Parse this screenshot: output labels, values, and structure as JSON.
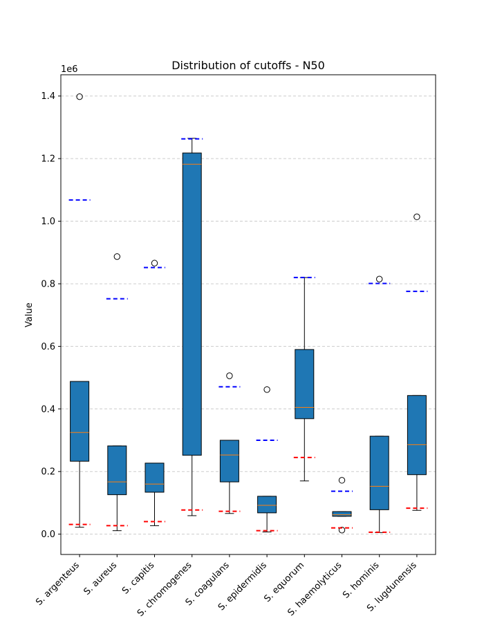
{
  "chart_data": {
    "type": "box",
    "title": "Distribution of cutoffs - N50",
    "xlabel": "",
    "ylabel": "Value",
    "y_scale_label": "1e6",
    "ylim": [
      -0.065,
      1.468
    ],
    "yticks": [
      0.0,
      0.2,
      0.4,
      0.6,
      0.8,
      1.0,
      1.2,
      1.4
    ],
    "ytick_labels": [
      "0.0",
      "0.2",
      "0.4",
      "0.6",
      "0.8",
      "1.0",
      "1.2",
      "1.4"
    ],
    "grid": "y-dashed",
    "categories": [
      "S. argenteus",
      "S. aureus",
      "S. capitis",
      "S. chromogenes",
      "S. coagulans",
      "S. epidermidis",
      "S. equorum",
      "S. haemolyticus",
      "S. hominis",
      "S. lugdunensis"
    ],
    "boxes": [
      {
        "whisker_low": 0.022,
        "q1": 0.233,
        "median": 0.325,
        "q3": 0.488,
        "whisker_high": 0.488,
        "outliers": [
          1.398
        ],
        "upper_cutoff": 1.068,
        "lower_cutoff": 0.031
      },
      {
        "whisker_low": 0.011,
        "q1": 0.126,
        "median": 0.167,
        "q3": 0.282,
        "whisker_high": 0.282,
        "outliers": [
          0.887
        ],
        "upper_cutoff": 0.752,
        "lower_cutoff": 0.027
      },
      {
        "whisker_low": 0.027,
        "q1": 0.134,
        "median": 0.16,
        "q3": 0.227,
        "whisker_high": 0.227,
        "outliers": [
          0.866
        ],
        "upper_cutoff": 0.852,
        "lower_cutoff": 0.04
      },
      {
        "whisker_low": 0.059,
        "q1": 0.252,
        "median": 1.182,
        "q3": 1.218,
        "whisker_high": 1.265,
        "outliers": [],
        "upper_cutoff": 1.263,
        "lower_cutoff": 0.077
      },
      {
        "whisker_low": 0.066,
        "q1": 0.167,
        "median": 0.253,
        "q3": 0.3,
        "whisker_high": 0.3,
        "outliers": [
          0.506
        ],
        "upper_cutoff": 0.471,
        "lower_cutoff": 0.073
      },
      {
        "whisker_low": 0.007,
        "q1": 0.068,
        "median": 0.092,
        "q3": 0.121,
        "whisker_high": 0.121,
        "outliers": [
          0.462
        ],
        "upper_cutoff": 0.3,
        "lower_cutoff": 0.011
      },
      {
        "whisker_low": 0.17,
        "q1": 0.369,
        "median": 0.405,
        "q3": 0.59,
        "whisker_high": 0.82,
        "outliers": [],
        "upper_cutoff": 0.82,
        "lower_cutoff": 0.245
      },
      {
        "whisker_low": 0.057,
        "q1": 0.057,
        "median": 0.062,
        "q3": 0.072,
        "whisker_high": 0.072,
        "outliers": [
          0.172,
          0.013
        ],
        "upper_cutoff": 0.137,
        "lower_cutoff": 0.02
      },
      {
        "whisker_low": 0.005,
        "q1": 0.078,
        "median": 0.153,
        "q3": 0.313,
        "whisker_high": 0.313,
        "outliers": [
          0.815
        ],
        "upper_cutoff": 0.801,
        "lower_cutoff": 0.006
      },
      {
        "whisker_low": 0.076,
        "q1": 0.19,
        "median": 0.286,
        "q3": 0.443,
        "whisker_high": 0.443,
        "outliers": [
          1.014
        ],
        "upper_cutoff": 0.776,
        "lower_cutoff": 0.083
      }
    ],
    "colors": {
      "box_fill": "#1f77b4",
      "median": "#ff7f0e",
      "upper_cutoff": "#0000ff",
      "lower_cutoff": "#ff0000",
      "grid": "#cccccc"
    }
  }
}
